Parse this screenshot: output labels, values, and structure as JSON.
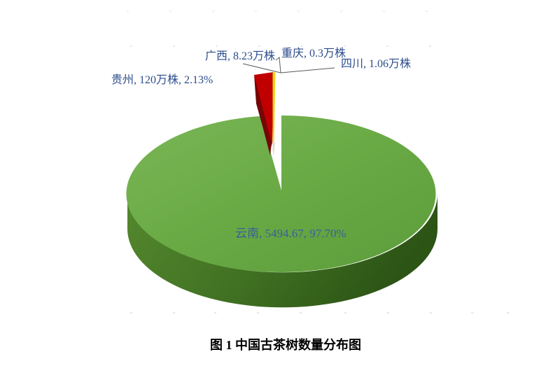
{
  "chart_data": {
    "type": "pie",
    "style": "3d-exploded-pie",
    "title": "图 1 中国古茶树数量分布图",
    "unit": "万株",
    "legend_position": "none",
    "label_color": "#2B4C8C",
    "slices": [
      {
        "name": "云南",
        "value": 5494.67,
        "percent_label": "97.70%",
        "label": "云南, 5494.67, 97.70%",
        "color": "#6BAB46"
      },
      {
        "name": "贵州",
        "value": 120,
        "percent_label": "2.13%",
        "label": "贵州, 120万株, 2.13%",
        "color": "#C00000"
      },
      {
        "name": "广西",
        "value": 8.23,
        "label": "广西, 8.23万株",
        "color": "#E8D51F"
      },
      {
        "name": "重庆",
        "value": 0.3,
        "label": "重庆, 0.3万株",
        "color": "#FFFFFF"
      },
      {
        "name": "四川",
        "value": 1.06,
        "label": "四川, 1.06万株",
        "color": "#FFFFFF"
      }
    ]
  }
}
